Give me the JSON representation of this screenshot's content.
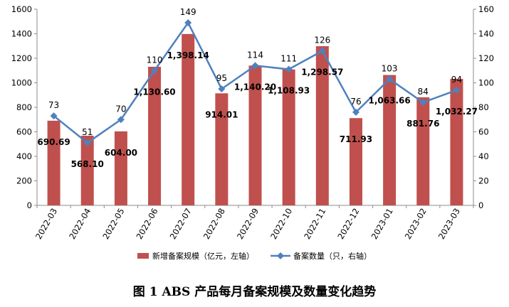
{
  "caption": "图 1  ABS 产品每月备案规模及数量变化趋势",
  "chart_data": {
    "type": "bar",
    "categories": [
      "2022-03",
      "2022-04",
      "2022-05",
      "2022-06",
      "2022-07",
      "2022-08",
      "2022-09",
      "2022-10",
      "2022-11",
      "2022-12",
      "2023-01",
      "2023-02",
      "2023-03"
    ],
    "series": [
      {
        "name": "新增备案规模（亿元，左轴）",
        "type": "bar",
        "axis": "left",
        "color": "#C0504D",
        "values": [
          690.69,
          568.1,
          604.0,
          1130.6,
          1398.14,
          914.01,
          1140.2,
          1108.93,
          1298.57,
          711.93,
          1063.66,
          881.76,
          1032.27
        ],
        "labels": [
          "690.69",
          "568.10",
          "604.00",
          "1,130.60",
          "1,398.14",
          "914.01",
          "1,140.20",
          "1,108.93",
          "1,298.57",
          "711.93",
          "1,063.66",
          "881.76",
          "1,032.27"
        ]
      },
      {
        "name": "备案数量（只，右轴）",
        "type": "line",
        "axis": "right",
        "color": "#4F81BD",
        "values": [
          73,
          51,
          70,
          110,
          149,
          95,
          114,
          111,
          126,
          76,
          103,
          84,
          94
        ],
        "labels": [
          "73",
          "51",
          "70",
          "110",
          "149",
          "95",
          "114",
          "111",
          "126",
          "76",
          "103",
          "84",
          "94"
        ]
      }
    ],
    "y_left": {
      "min": 0,
      "max": 1600,
      "step": 200,
      "ticks": [
        "0",
        "200",
        "400",
        "600",
        "800",
        "1000",
        "1200",
        "1400",
        "1600"
      ]
    },
    "y_right": {
      "min": 0,
      "max": 160,
      "step": 20,
      "ticks": [
        "0",
        "20",
        "40",
        "60",
        "80",
        "100",
        "120",
        "140",
        "160"
      ]
    },
    "grid": false,
    "legend_position": "bottom"
  }
}
